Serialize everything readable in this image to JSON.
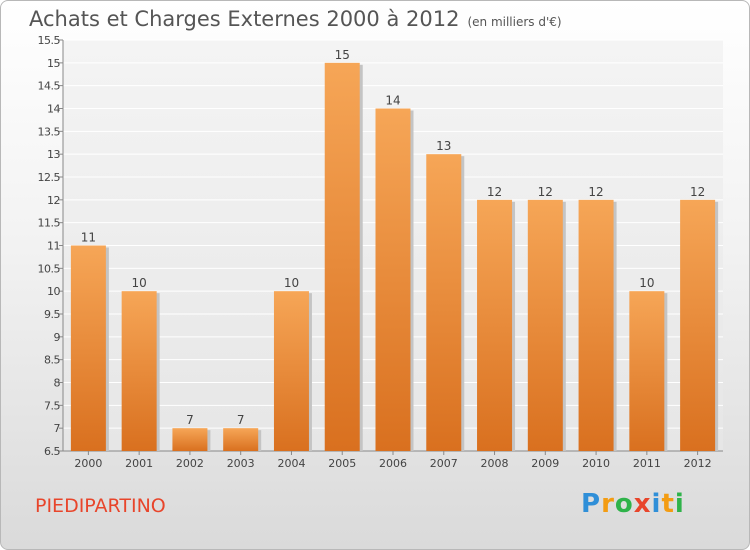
{
  "title": "Achats et Charges Externes 2000 à 2012",
  "subtitle": "(en milliers d'€)",
  "commune": "PIEDIPARTINO",
  "logo": {
    "letters": [
      "P",
      "r",
      "o",
      "x",
      "i",
      "t",
      "i"
    ],
    "colors": [
      "#2f8fd8",
      "#f39c12",
      "#2fb34a",
      "#e8452b",
      "#2f8fd8",
      "#f39c12",
      "#2fb34a"
    ]
  },
  "chart_data": {
    "type": "bar",
    "title": "Achats et Charges Externes 2000 à 2012",
    "subtitle": "(en milliers d'€)",
    "xlabel": "",
    "ylabel": "",
    "categories": [
      "2000",
      "2001",
      "2002",
      "2003",
      "2004",
      "2005",
      "2006",
      "2007",
      "2008",
      "2009",
      "2010",
      "2011",
      "2012"
    ],
    "values": [
      11,
      10,
      7,
      7,
      10,
      15,
      14,
      13,
      12,
      12,
      12,
      10,
      12
    ],
    "ylim": [
      6.5,
      15.5
    ],
    "yticks": [
      "6.5",
      "7",
      "7.5",
      "8",
      "8.5",
      "9",
      "9.5",
      "10",
      "10.5",
      "11",
      "11.5",
      "12",
      "12.5",
      "13",
      "13.5",
      "14",
      "14.5",
      "15",
      "15.5"
    ],
    "grid": true,
    "bar_color": "#f0923a"
  }
}
